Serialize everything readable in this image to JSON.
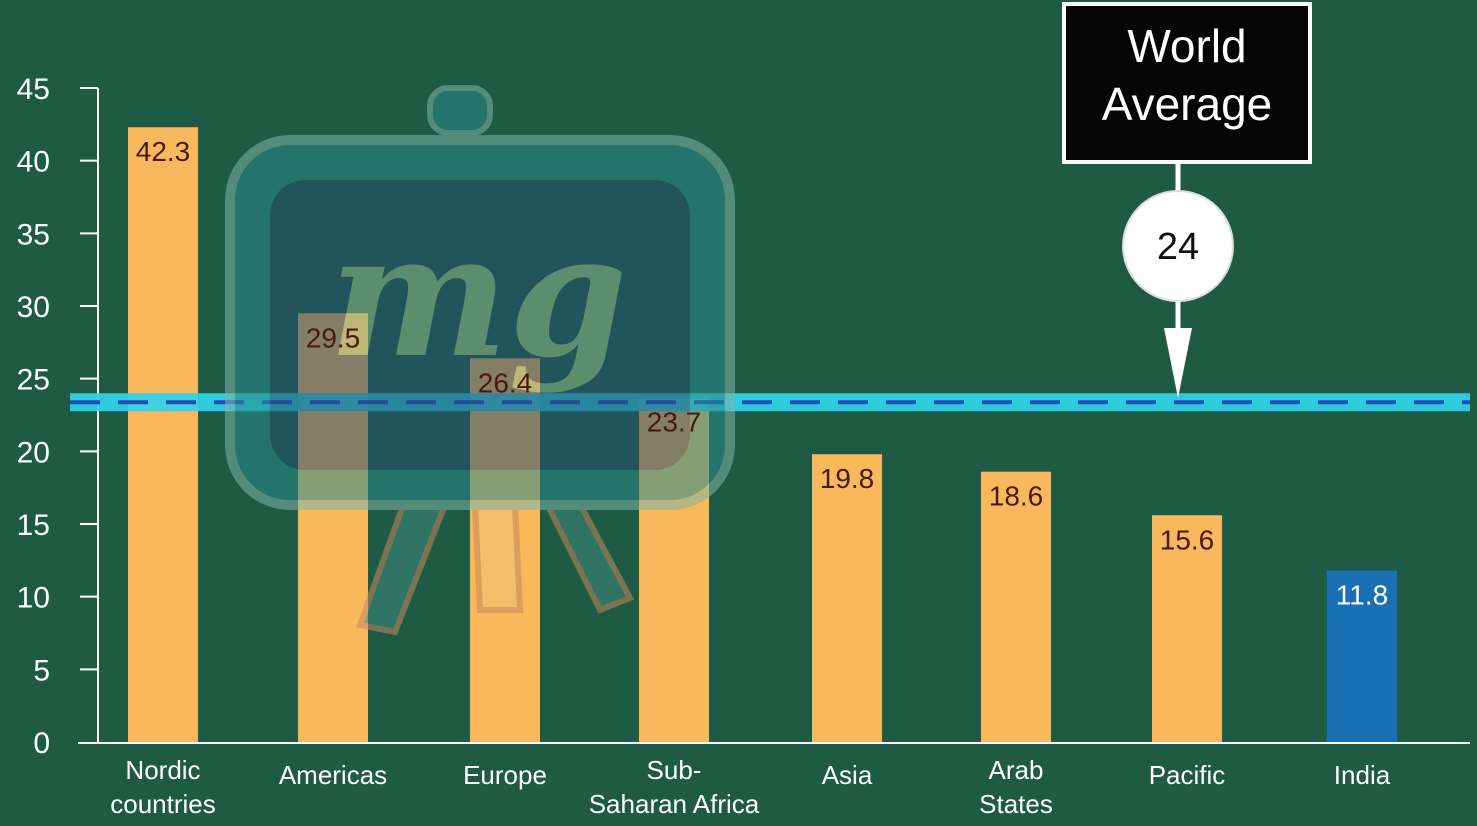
{
  "chart_data": {
    "type": "bar",
    "categories": [
      [
        "Nordic",
        "countries"
      ],
      [
        "Americas"
      ],
      [
        "Europe"
      ],
      [
        "Sub-",
        "Saharan Africa"
      ],
      [
        "Asia"
      ],
      [
        "Arab",
        "States"
      ],
      [
        "Pacific"
      ],
      [
        "India"
      ]
    ],
    "values": [
      42.3,
      29.5,
      26.4,
      23.7,
      19.8,
      18.6,
      15.6,
      11.8
    ],
    "data_labels": [
      "42.3",
      "29.5",
      "26.4",
      "23.7",
      "19.8",
      "18.6",
      "15.6",
      "11.8"
    ],
    "highlight_index": 7,
    "ylim": [
      0,
      45
    ],
    "yticks": [
      "0",
      "5",
      "10",
      "15",
      "20",
      "25",
      "30",
      "35",
      "40",
      "45"
    ],
    "reference_line": {
      "value": 24,
      "label_lines": [
        "World",
        "Average"
      ],
      "value_label": "24"
    },
    "colors": {
      "bar": "#f9b85c",
      "highlight_bar": "#1a6fb5",
      "background": "#1f5a45",
      "axis": "#ffffff",
      "ref_band": "#2fd3ea",
      "ref_dash": "#1d4fb8",
      "label_dark": "#4a1a10",
      "label_highlight": "#ffffff"
    },
    "watermark": "mg"
  }
}
